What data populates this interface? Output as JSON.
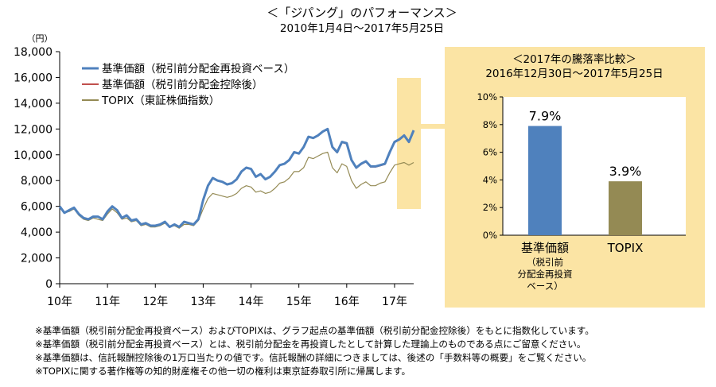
{
  "chart_data": [
    {
      "type": "line",
      "title": "＜「ジパング」のパフォーマンス＞",
      "subtitle": "2010年1月4日～2017年5月25日",
      "ylabel": "（円）",
      "ylim": [
        0,
        18000
      ],
      "yticks": [
        "0",
        "2,000",
        "4,000",
        "6,000",
        "8,000",
        "10,000",
        "12,000",
        "14,000",
        "16,000",
        "18,000"
      ],
      "ytick_values": [
        0,
        2000,
        4000,
        6000,
        8000,
        10000,
        12000,
        14000,
        16000,
        18000
      ],
      "xlim": [
        2010.0,
        2017.4
      ],
      "xticks": [
        "10年",
        "11年",
        "12年",
        "13年",
        "14年",
        "15年",
        "16年",
        "17年"
      ],
      "xtick_values": [
        2010,
        2011,
        2012,
        2013,
        2014,
        2015,
        2016,
        2017
      ],
      "grid": false,
      "legend_position": "top-left",
      "x": [
        2010.0,
        2010.1,
        2010.2,
        2010.3,
        2010.4,
        2010.5,
        2010.6,
        2010.7,
        2010.8,
        2010.9,
        2011.0,
        2011.1,
        2011.2,
        2011.3,
        2011.4,
        2011.5,
        2011.6,
        2011.7,
        2011.8,
        2011.9,
        2012.0,
        2012.1,
        2012.2,
        2012.3,
        2012.4,
        2012.5,
        2012.6,
        2012.7,
        2012.8,
        2012.9,
        2013.0,
        2013.1,
        2013.2,
        2013.3,
        2013.4,
        2013.5,
        2013.6,
        2013.7,
        2013.8,
        2013.9,
        2014.0,
        2014.1,
        2014.2,
        2014.3,
        2014.4,
        2014.5,
        2014.6,
        2014.7,
        2014.8,
        2014.9,
        2015.0,
        2015.1,
        2015.2,
        2015.3,
        2015.4,
        2015.5,
        2015.6,
        2015.7,
        2015.8,
        2015.9,
        2016.0,
        2016.1,
        2016.2,
        2016.3,
        2016.4,
        2016.5,
        2016.6,
        2016.7,
        2016.8,
        2016.9,
        2017.0,
        2017.1,
        2017.2,
        2017.3,
        2017.4
      ],
      "series": [
        {
          "name": "基準価額（税引前分配金再投資ベース）",
          "color": "#4F81BD",
          "values": [
            6000,
            5500,
            5700,
            5900,
            5400,
            5100,
            5000,
            5200,
            5200,
            5000,
            5600,
            6000,
            5700,
            5100,
            5300,
            4900,
            5000,
            4600,
            4700,
            4500,
            4500,
            4600,
            4800,
            4400,
            4600,
            4400,
            4800,
            4700,
            4600,
            5000,
            6500,
            7600,
            8200,
            8000,
            7900,
            7700,
            7800,
            8100,
            8700,
            9000,
            8900,
            8300,
            8500,
            8100,
            8300,
            8700,
            9200,
            9300,
            9600,
            10200,
            10100,
            10600,
            11400,
            11300,
            11500,
            11800,
            12000,
            10600,
            10200,
            11000,
            10900,
            9600,
            9000,
            9300,
            9500,
            9100,
            9100,
            9200,
            9300,
            10200,
            11000,
            11200,
            11500,
            11000,
            11900
          ]
        },
        {
          "name": "基準価額（税引前分配金控除後）",
          "color": "#C0504D",
          "values": [
            6000,
            5500,
            5700,
            5900,
            5400,
            5100,
            5000,
            5200,
            5200,
            5000,
            5600,
            6000,
            5700,
            5100,
            5300,
            4900,
            5000,
            4600,
            4700,
            4500,
            4500,
            4600,
            4800,
            4400,
            4600,
            4400,
            4800,
            4700,
            4600,
            5000,
            6500,
            7600,
            8200,
            8000,
            7900,
            7700,
            7800,
            8100,
            8700,
            9000,
            8900,
            8300,
            8500,
            8100,
            8300,
            8700,
            9200,
            9300,
            9600,
            10200,
            10100,
            10600,
            11400,
            11300,
            11500,
            11800,
            11950,
            10550,
            10150,
            10950,
            10850,
            9550,
            8950,
            9250,
            9450,
            9050,
            9050,
            9150,
            9250,
            10150,
            10950,
            11150,
            11450,
            10950,
            11850
          ]
        },
        {
          "name": "TOPIX（東証株価指数）",
          "color": "#948A54",
          "values": [
            6000,
            5500,
            5600,
            5800,
            5300,
            5000,
            4900,
            5100,
            5000,
            4900,
            5400,
            5800,
            5500,
            5000,
            5100,
            4800,
            4900,
            4500,
            4600,
            4400,
            4400,
            4500,
            4700,
            4400,
            4500,
            4300,
            4600,
            4600,
            4500,
            4900,
            5800,
            6600,
            7000,
            6900,
            6800,
            6700,
            6800,
            7000,
            7400,
            7600,
            7500,
            7100,
            7200,
            7000,
            7100,
            7400,
            7800,
            7900,
            8200,
            8700,
            8700,
            9000,
            9800,
            9700,
            9900,
            10100,
            10200,
            9000,
            8600,
            9300,
            9100,
            8000,
            7400,
            7700,
            7900,
            7600,
            7600,
            7800,
            7900,
            8600,
            9200,
            9300,
            9400,
            9200,
            9400
          ]
        }
      ]
    },
    {
      "type": "bar",
      "title": "＜2017年の騰落率比較＞",
      "subtitle": "2016年12月30日～2017年5月25日",
      "ylim": [
        0,
        10
      ],
      "yticks": [
        "0%",
        "2%",
        "4%",
        "6%",
        "8%",
        "10%"
      ],
      "ytick_values": [
        0,
        2,
        4,
        6,
        8,
        10
      ],
      "categories": [
        "基準価額",
        "TOPIX"
      ],
      "category_sublabels": [
        [
          "（税引前",
          "分配金再投資",
          "ベース）"
        ],
        []
      ],
      "values": [
        7.9,
        3.9
      ],
      "value_labels": [
        "7.9%",
        "3.9%"
      ],
      "colors": [
        "#4F81BD",
        "#948A54"
      ],
      "panel_color": "#FBE4A4"
    }
  ],
  "notes": [
    "※基準価額（税引前分配金再投資ベース）およびTOPIXは、グラフ起点の基準価額（税引前分配金控除後）をもとに指数化しています。",
    "※基準価額（税引前分配金再投資ベース）とは、税引前分配金を再投資したとして計算した理論上のものである点にご留意ください。",
    "※基準価額は、信託報酬控除後の1万口当たりの値です。信託報酬の詳細につきましては、後述の「手数料等の概要」をご覧ください。",
    "※TOPIXに関する著作権等の知的財産権その他一切の権利は東京証券取引所に帰属します。"
  ]
}
